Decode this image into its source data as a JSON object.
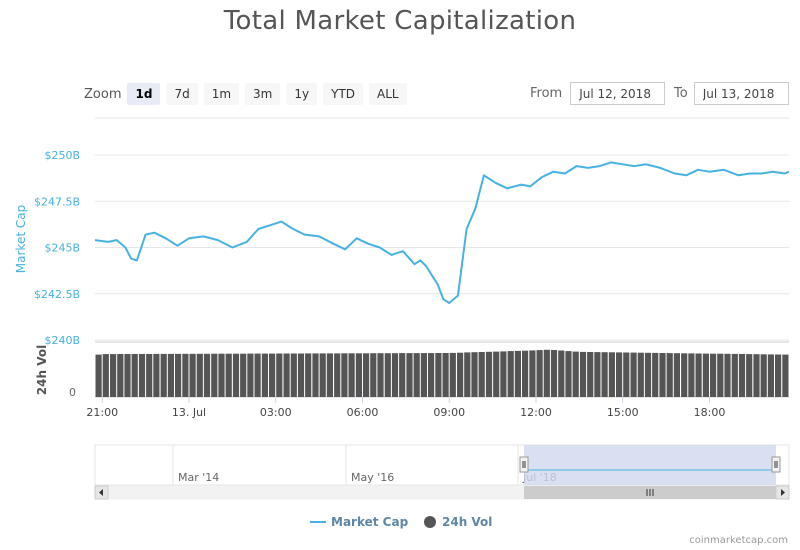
{
  "title": "Total Market Capitalization",
  "zoom": {
    "label": "Zoom",
    "buttons": [
      "1d",
      "7d",
      "1m",
      "3m",
      "1y",
      "YTD",
      "ALL"
    ],
    "active": "1d"
  },
  "range": {
    "from_label": "From",
    "from_value": "Jul 12, 2018",
    "to_label": "To",
    "to_value": "Jul 13, 2018"
  },
  "colors": {
    "market_cap": "#47b1e2",
    "volume": "#555555",
    "navigator_fill": "#cfd8ee",
    "grid": "#e6e6e6"
  },
  "chart_data": {
    "type": "line",
    "ylabel": "Market Cap",
    "ylim": [
      240,
      252
    ],
    "y_ticks": [
      240,
      242.5,
      245,
      247.5,
      250
    ],
    "y_tick_labels": [
      "$240B",
      "$242.5B",
      "$245B",
      "$247.5B",
      "$250B"
    ],
    "x_tick_labels": [
      "21:00",
      "13. Jul",
      "03:00",
      "06:00",
      "09:00",
      "12:00",
      "15:00",
      "18:00"
    ],
    "x_ticks_hours": [
      0,
      3,
      6,
      9,
      12,
      15,
      18,
      21
    ],
    "x_range_hours": [
      -0.25,
      23.75
    ],
    "series": [
      {
        "name": "Market Cap",
        "x": [
          -0.25,
          0.2,
          0.5,
          0.8,
          1.0,
          1.2,
          1.5,
          1.8,
          2.2,
          2.6,
          3.0,
          3.5,
          4.0,
          4.5,
          5.0,
          5.4,
          5.8,
          6.2,
          6.6,
          7.0,
          7.5,
          8.0,
          8.4,
          8.8,
          9.2,
          9.6,
          10.0,
          10.4,
          10.8,
          11.0,
          11.2,
          11.4,
          11.6,
          11.8,
          12.0,
          12.3,
          12.6,
          12.9,
          13.2,
          13.6,
          14.0,
          14.5,
          14.8,
          15.2,
          15.6,
          16.0,
          16.4,
          16.8,
          17.2,
          17.6,
          18.0,
          18.4,
          18.8,
          19.3,
          19.8,
          20.2,
          20.6,
          21.0,
          21.5,
          22.0,
          22.4,
          22.8,
          23.2,
          23.6,
          23.75
        ],
        "values": [
          245.4,
          245.3,
          245.4,
          245.0,
          244.4,
          244.3,
          245.7,
          245.8,
          245.5,
          245.1,
          245.5,
          245.6,
          245.4,
          245.0,
          245.3,
          246.0,
          246.2,
          246.4,
          246.0,
          245.7,
          245.6,
          245.2,
          244.9,
          245.5,
          245.2,
          245.0,
          244.6,
          244.8,
          244.1,
          244.3,
          244.0,
          243.5,
          243.0,
          242.2,
          242.0,
          242.4,
          246.0,
          247.1,
          248.9,
          248.5,
          248.2,
          248.4,
          248.3,
          248.8,
          249.1,
          249.0,
          249.4,
          249.3,
          249.4,
          249.6,
          249.5,
          249.4,
          249.5,
          249.3,
          249.0,
          248.9,
          249.2,
          249.1,
          249.2,
          248.9,
          249.0,
          249.0,
          249.1,
          249.0,
          249.1
        ]
      },
      {
        "name": "24h Vol",
        "x": [
          0,
          12,
          14.5,
          15.5,
          16.5,
          23.75
        ],
        "values": [
          0.78,
          0.8,
          0.84,
          0.86,
          0.82,
          0.77
        ]
      }
    ],
    "volume_axis": {
      "label": "24h Vol",
      "tick_label": "0"
    },
    "navigator": {
      "labels": [
        "Mar '14",
        "May '16",
        "Jul '18"
      ]
    },
    "legend": {
      "placement": "bottom-center",
      "items": [
        "Market Cap",
        "24h Vol"
      ]
    }
  },
  "footer": {
    "credit": "coinmarketcap.com"
  }
}
